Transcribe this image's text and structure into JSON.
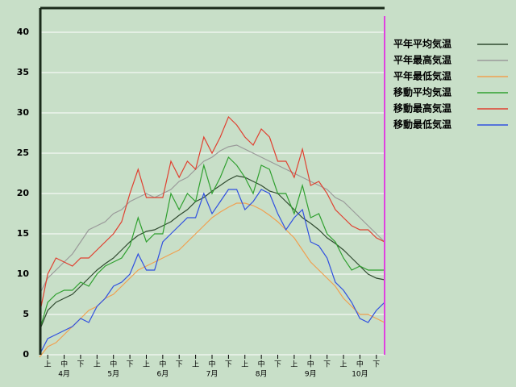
{
  "chart_data": {
    "type": "line",
    "categories": [
      null,
      "上",
      null,
      "中",
      null,
      "下",
      null,
      "上",
      null,
      "中",
      null,
      "下",
      null,
      "上",
      null,
      "中",
      null,
      "下",
      null,
      "上",
      null,
      "中",
      null,
      "下",
      null,
      "上",
      null,
      "中",
      null,
      "下",
      null,
      "上",
      null,
      "中",
      null,
      "下",
      null,
      "上",
      null,
      "中",
      null,
      "下",
      null
    ],
    "month_labels": [
      "4月",
      "5月",
      "6月",
      "7月",
      "8月",
      "9月",
      "10月"
    ],
    "ylim": [
      0,
      43
    ],
    "yticks": [
      0,
      5,
      10,
      15,
      20,
      25,
      30,
      35,
      40
    ],
    "grid": true,
    "series": [
      {
        "name": "平年平均気温",
        "color": "#2f4a2f",
        "values": [
          3,
          5.5,
          6.5,
          7,
          7.5,
          8.5,
          9.5,
          10.5,
          11.3,
          12,
          13,
          14,
          14.8,
          15.3,
          15.5,
          16,
          16.5,
          17.3,
          18,
          19,
          19.5,
          20.3,
          21,
          21.7,
          22.2,
          22,
          21.5,
          21,
          20.3,
          20,
          19,
          18,
          17,
          16.3,
          15.5,
          14.5,
          13.8,
          13,
          12,
          11,
          10,
          9.5,
          9.3
        ]
      },
      {
        "name": "平年最高気温",
        "color": "#9a9a9a",
        "values": [
          7.5,
          9.5,
          10.5,
          11.5,
          12.5,
          14,
          15.5,
          16,
          16.5,
          17.5,
          18,
          19,
          19.5,
          20,
          19.5,
          20,
          20.5,
          21.5,
          22,
          23,
          24,
          24.5,
          25.3,
          25.8,
          26,
          25.5,
          25,
          24.5,
          24,
          23.5,
          23,
          22.5,
          22,
          21.5,
          21,
          20.5,
          19.5,
          19,
          18,
          17,
          16,
          15,
          14
        ]
      },
      {
        "name": "平年最低気温",
        "color": "#f0a050",
        "values": [
          -0.3,
          1,
          1.5,
          2.5,
          3.5,
          4.5,
          5.5,
          6,
          7,
          7.5,
          8.5,
          9.5,
          10.5,
          11,
          11.5,
          12,
          12.5,
          13,
          14,
          15,
          16,
          17,
          17.7,
          18.3,
          18.8,
          18.8,
          18.5,
          18,
          17.3,
          16.5,
          15.5,
          14.5,
          13,
          11.5,
          10.5,
          9.5,
          8.5,
          7,
          6,
          5,
          5,
          4.5,
          4
        ]
      },
      {
        "name": "移動平均気温",
        "color": "#30a030",
        "values": [
          3,
          6.5,
          7.5,
          8,
          8,
          9,
          8.5,
          10,
          11,
          11.5,
          12,
          13.5,
          17,
          14,
          15,
          15,
          20,
          18,
          20,
          19,
          23.5,
          20,
          22,
          24.5,
          23.5,
          22,
          20,
          23.5,
          23,
          20,
          20,
          17.5,
          21,
          17,
          17.5,
          15,
          14,
          12,
          10.5,
          11,
          10.5,
          10.5,
          10.5
        ]
      },
      {
        "name": "移動最高気温",
        "color": "#e04030",
        "values": [
          5,
          10,
          12,
          11.5,
          11,
          12,
          12,
          13,
          14,
          15,
          16.5,
          20,
          23,
          19.5,
          19.5,
          19.5,
          24,
          22,
          24,
          23,
          27,
          25,
          27,
          29.5,
          28.5,
          27,
          26,
          28,
          27,
          24,
          24,
          22,
          25.5,
          21,
          21.5,
          20,
          18,
          17,
          16,
          15.5,
          15.5,
          14.5,
          14
        ]
      },
      {
        "name": "移動最低気温",
        "color": "#3050e0",
        "values": [
          0,
          2,
          2.5,
          3,
          3.5,
          4.5,
          4,
          6,
          7,
          8.5,
          9,
          10,
          12.5,
          10.5,
          10.5,
          14,
          15,
          16,
          17,
          17,
          20,
          17.5,
          19,
          20.5,
          20.5,
          18,
          19,
          20.5,
          20,
          17.5,
          15.5,
          17,
          18,
          14,
          13.5,
          12,
          9,
          8,
          6.5,
          4.5,
          4,
          5.5,
          6.5
        ]
      }
    ]
  }
}
